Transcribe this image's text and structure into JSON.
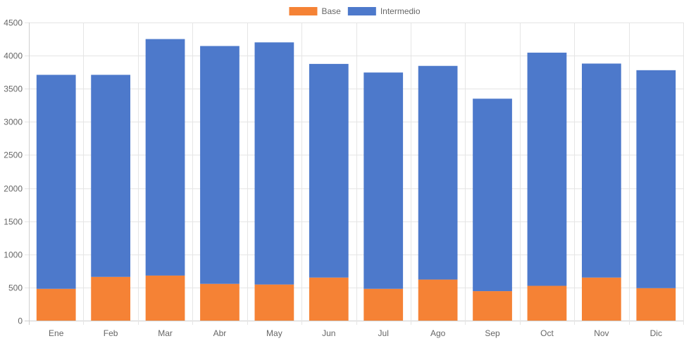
{
  "chart_data": {
    "type": "bar",
    "stacked": true,
    "categories": [
      "Ene",
      "Feb",
      "Mar",
      "Abr",
      "May",
      "Jun",
      "Jul",
      "Ago",
      "Sep",
      "Oct",
      "Nov",
      "Dic"
    ],
    "series": [
      {
        "name": "Base",
        "color": "#f58235",
        "values": [
          480,
          660,
          680,
          555,
          545,
          650,
          480,
          620,
          445,
          525,
          650,
          490
        ]
      },
      {
        "name": "Intermedio",
        "color": "#4d79cb",
        "values": [
          3230,
          3050,
          3570,
          3590,
          3655,
          3225,
          3265,
          3225,
          2905,
          3520,
          3230,
          3290
        ]
      }
    ],
    "yticks": [
      0,
      500,
      1000,
      1500,
      2000,
      2500,
      3000,
      3500,
      4000,
      4500
    ],
    "ylim": [
      0,
      4500
    ],
    "grid": true,
    "legend_position": "top-center"
  }
}
